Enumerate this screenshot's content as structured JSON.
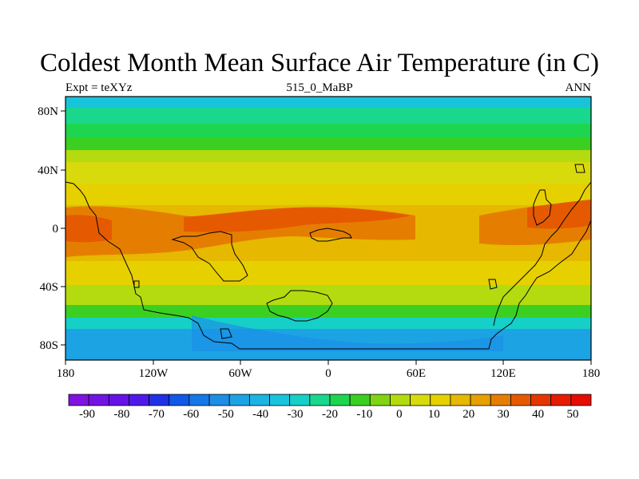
{
  "title": "Coldest Month Mean Surface Air Temperature (in C)",
  "subtitle_left": "Expt = teXYz",
  "subtitle_center": "515_0_MaBP",
  "subtitle_right": "ANN",
  "x_ticks": [
    "180",
    "120W",
    "60W",
    "0",
    "60E",
    "120E",
    "180"
  ],
  "y_ticks": [
    "80N",
    "40N",
    "0",
    "40S",
    "80S"
  ],
  "colorbar": {
    "labels": [
      "-90",
      "-80",
      "-70",
      "-60",
      "-50",
      "-40",
      "-30",
      "-20",
      "-10",
      "0",
      "10",
      "20",
      "30",
      "40",
      "50"
    ],
    "colors": [
      "#7f12e0",
      "#7213e5",
      "#6511e8",
      "#4e1ae9",
      "#2030e6",
      "#1058e6",
      "#1677e8",
      "#1c8ee6",
      "#1ca3e4",
      "#1cb4e2",
      "#18c4dc",
      "#16d0c8",
      "#19d78c",
      "#1ed54f",
      "#3bd021",
      "#80d413",
      "#b3db10",
      "#d9da0c",
      "#e6d000",
      "#e6b800",
      "#e6a100",
      "#e57e00",
      "#e55a00",
      "#e63600",
      "#e61c00",
      "#e60c00"
    ]
  },
  "chart_data": {
    "type": "heatmap",
    "title": "Coldest Month Mean Surface Air Temperature (in C)",
    "units": "C",
    "x_range": [
      -180,
      180
    ],
    "y_range": [
      -90,
      90
    ],
    "latitude_bands": [
      {
        "lat_from": 90,
        "lat_to": 80,
        "value": -20
      },
      {
        "lat_from": 80,
        "lat_to": 68,
        "value": -10
      },
      {
        "lat_from": 68,
        "lat_to": 58,
        "value": 0
      },
      {
        "lat_from": 58,
        "lat_to": 48,
        "value": 10
      },
      {
        "lat_from": 48,
        "lat_to": 38,
        "value": 20
      },
      {
        "lat_from": 38,
        "lat_to": 22,
        "value": 25
      },
      {
        "lat_from": 22,
        "lat_to": -22,
        "value": 30
      },
      {
        "lat_from": -22,
        "lat_to": -35,
        "value": 25
      },
      {
        "lat_from": -35,
        "lat_to": -50,
        "value": 15
      },
      {
        "lat_from": -50,
        "lat_to": -60,
        "value": 5
      },
      {
        "lat_from": -60,
        "lat_to": -70,
        "value": -10
      },
      {
        "lat_from": -70,
        "lat_to": -90,
        "value": -25
      }
    ]
  }
}
